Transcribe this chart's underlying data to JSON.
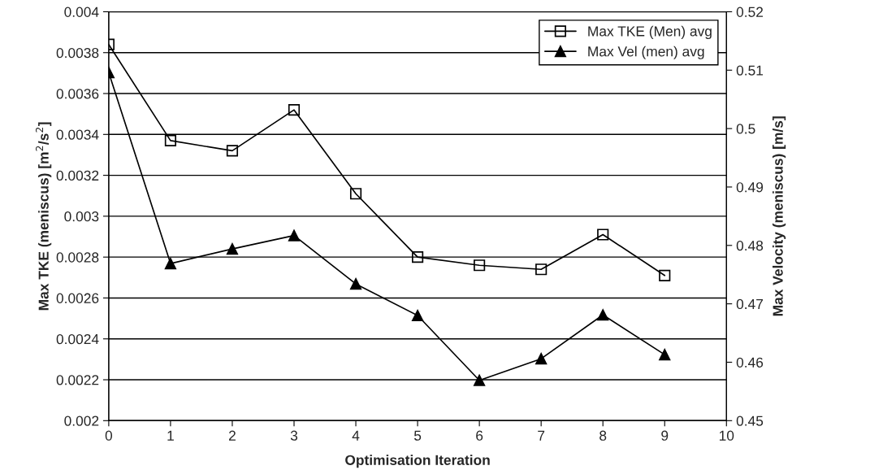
{
  "chart_data": {
    "type": "line",
    "xlabel": "Optimisation Iteration",
    "ylabel": "Max TKE (meniscus) [m$^{2}$/s$^{2}$]",
    "y2label": "Max Velocity (meniscus) [m/s]",
    "x": [
      0,
      1,
      2,
      3,
      4,
      5,
      6,
      7,
      8,
      9
    ],
    "series": [
      {
        "name": "Max TKE (Men) avg",
        "color": "#000000",
        "marker": "square",
        "values": [
          0.00384,
          0.00337,
          0.00332,
          0.00352,
          0.00311,
          0.0028,
          0.00276,
          0.00274,
          0.00291,
          0.00271
        ]
      },
      {
        "name": "Max Vel (men) avg",
        "color": "#000000",
        "marker": "triangle",
        "axis": "y2",
        "values": [
          0.5096,
          0.4769,
          0.4794,
          0.4817,
          0.4734,
          0.468,
          0.4569,
          0.4606,
          0.4681,
          0.4613
        ]
      }
    ],
    "xlim": [
      0,
      10
    ],
    "xticks": [
      0,
      1,
      2,
      3,
      4,
      5,
      6,
      7,
      8,
      9,
      10
    ],
    "ylim": [
      0.002,
      0.004
    ],
    "yticks": [
      0.002,
      0.0022,
      0.0024,
      0.0026,
      0.0028,
      0.003,
      0.0032,
      0.0034,
      0.0036,
      0.0038,
      0.004
    ],
    "y2lim": [
      0.45,
      0.52
    ],
    "y2ticks": [
      0.45,
      0.46,
      0.47,
      0.48,
      0.49,
      0.5,
      0.51,
      0.52
    ],
    "grid": "y",
    "legend": "top right",
    "line_style": "solid"
  }
}
